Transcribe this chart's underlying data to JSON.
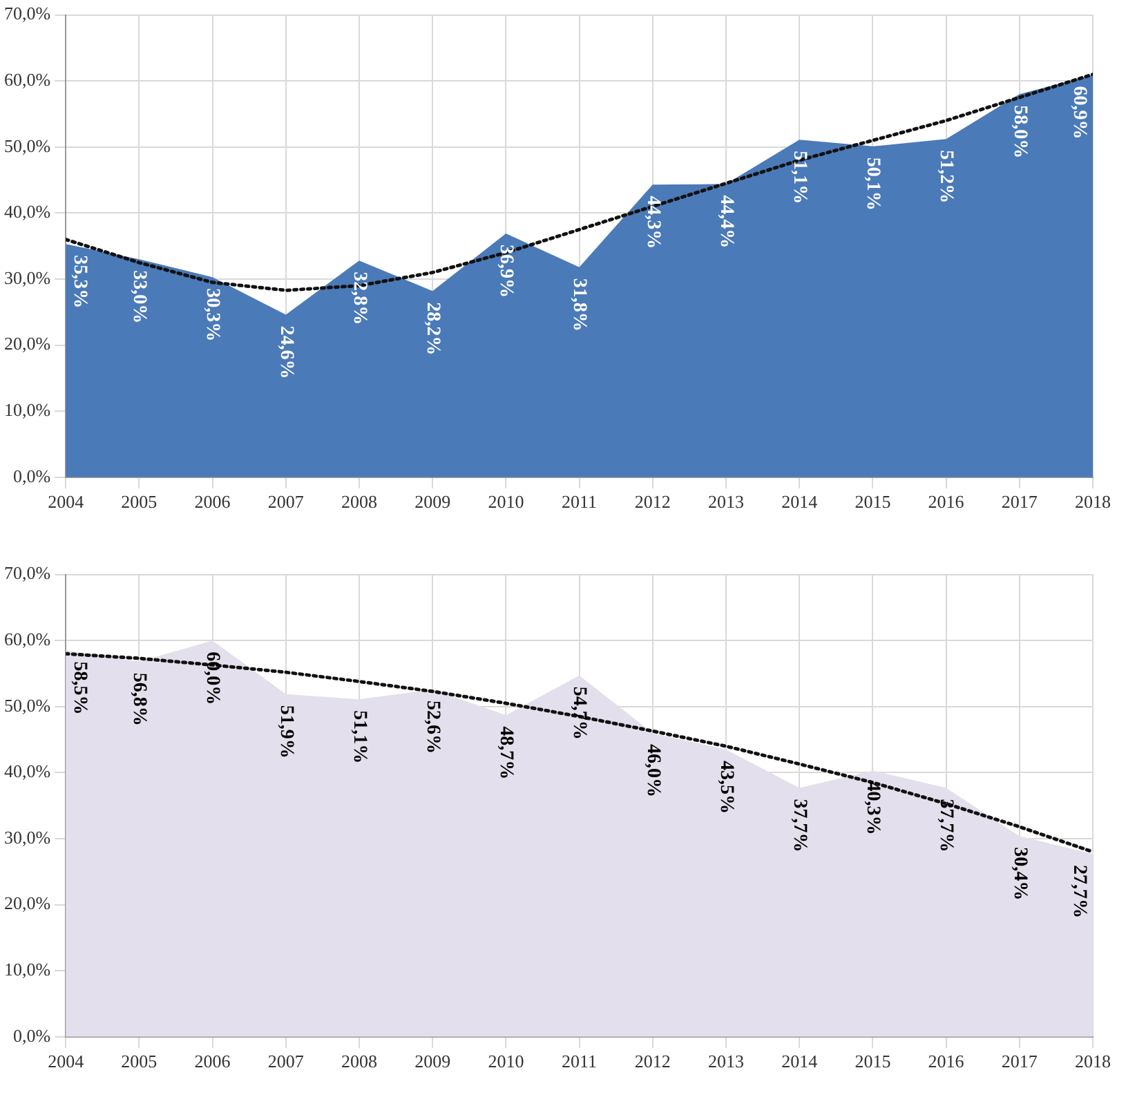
{
  "chart_data": [
    {
      "type": "area",
      "x": [
        2004,
        2005,
        2006,
        2007,
        2008,
        2009,
        2010,
        2011,
        2012,
        2013,
        2014,
        2015,
        2016,
        2017,
        2018
      ],
      "xlim": [
        2004,
        2018
      ],
      "xticks": [
        2004,
        2005,
        2006,
        2007,
        2008,
        2009,
        2010,
        2011,
        2012,
        2013,
        2014,
        2015,
        2016,
        2017,
        2018
      ],
      "ylim": [
        0,
        70
      ],
      "yticks": [
        {
          "value": 0,
          "label": "0,0%"
        },
        {
          "value": 10,
          "label": "10,0%"
        },
        {
          "value": 20,
          "label": "20,0%"
        },
        {
          "value": 30,
          "label": "30,0%"
        },
        {
          "value": 40,
          "label": "40,0%"
        },
        {
          "value": 50,
          "label": "50,0%"
        },
        {
          "value": 60,
          "label": "60,0%"
        },
        {
          "value": 70,
          "label": "70,0%"
        }
      ],
      "grid": true,
      "legend": false,
      "series": [
        {
          "color": "#4a7ab8",
          "values": [
            35.3,
            33.0,
            30.3,
            24.6,
            32.8,
            28.2,
            36.9,
            31.8,
            44.3,
            44.4,
            51.1,
            50.1,
            51.2,
            58.0,
            60.9
          ],
          "value_labels": [
            "35,3%",
            "33,0%",
            "30,3%",
            "24,6%",
            "32,8%",
            "28,2%",
            "36,9%",
            "31,8%",
            "44,3%",
            "44,4%",
            "51,1%",
            "50,1%",
            "51,2%",
            "58,0%",
            "60,9%"
          ]
        },
        {
          "type": "line",
          "color": "#111111",
          "line_style": "dotted",
          "x": [
            2004,
            2005,
            2006,
            2007,
            2008,
            2009,
            2010,
            2011,
            2012,
            2013,
            2014,
            2015,
            2016,
            2017,
            2018
          ],
          "values": [
            36,
            32.5,
            29.5,
            28.3,
            29,
            31,
            34,
            37.5,
            41,
            44.5,
            48,
            51,
            54,
            57.5,
            61
          ]
        }
      ]
    },
    {
      "type": "area",
      "x": [
        2004,
        2005,
        2006,
        2007,
        2008,
        2009,
        2010,
        2011,
        2012,
        2013,
        2014,
        2015,
        2016,
        2017,
        2018
      ],
      "xlim": [
        2004,
        2018
      ],
      "xticks": [
        2004,
        2005,
        2006,
        2007,
        2008,
        2009,
        2010,
        2011,
        2012,
        2013,
        2014,
        2015,
        2016,
        2017,
        2018
      ],
      "ylim": [
        0,
        70
      ],
      "yticks": [
        {
          "value": 0,
          "label": "0,0%"
        },
        {
          "value": 10,
          "label": "10,0%"
        },
        {
          "value": 20,
          "label": "20,0%"
        },
        {
          "value": 30,
          "label": "30,0%"
        },
        {
          "value": 40,
          "label": "40,0%"
        },
        {
          "value": 50,
          "label": "50,0%"
        },
        {
          "value": 60,
          "label": "60,0%"
        },
        {
          "value": 70,
          "label": "70,0%"
        }
      ],
      "grid": true,
      "legend": false,
      "series": [
        {
          "color": "#e4dfec",
          "values": [
            58.5,
            56.8,
            60.0,
            51.9,
            51.1,
            52.6,
            48.7,
            54.7,
            46.0,
            43.5,
            37.7,
            40.3,
            37.7,
            30.4,
            27.7
          ],
          "value_labels": [
            "58,5%",
            "56,8%",
            "60,0%",
            "51,9%",
            "51,1%",
            "52,6%",
            "48,7%",
            "54,7%",
            "46,0%",
            "43,5%",
            "37,7%",
            "40,3%",
            "37,7%",
            "30,4%",
            "27,7%"
          ]
        },
        {
          "type": "line",
          "color": "#111111",
          "line_style": "dotted",
          "x": [
            2004,
            2005,
            2006,
            2007,
            2008,
            2009,
            2010,
            2011,
            2012,
            2013,
            2014,
            2015,
            2016,
            2017,
            2018
          ],
          "values": [
            58,
            57.3,
            56.3,
            55.2,
            53.8,
            52.3,
            50.5,
            48.5,
            46.3,
            44,
            41.3,
            38.5,
            35.3,
            31.8,
            28
          ]
        }
      ]
    }
  ]
}
